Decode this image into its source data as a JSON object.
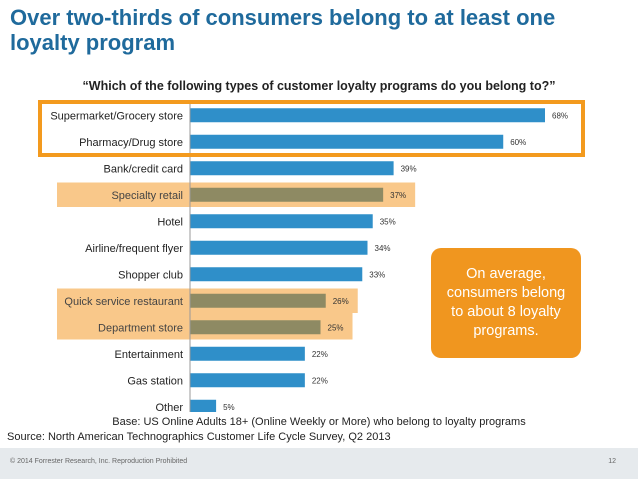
{
  "slide": {
    "title": "Over two-thirds of consumers belong to at least one loyalty program",
    "question": "“Which of the following types of customer loyalty programs do you belong to?”",
    "base_note": "Base: US Online Adults 18+ (Online Weekly or More) who belong to loyalty programs",
    "source": "Source: North American Technographics Customer Life Cycle Survey, Q2 2013",
    "copyright": "© 2014 Forrester Research, Inc. Reproduction Prohibited",
    "page_number": "12",
    "callout": "On average, consumers belong to about 8 loyalty programs."
  },
  "chart_data": {
    "type": "bar",
    "orientation": "horizontal",
    "categories": [
      "Supermarket/Grocery store",
      "Pharmacy/Drug store",
      "Bank/credit card",
      "Specialty retail",
      "Hotel",
      "Airline/frequent flyer",
      "Shopper club",
      "Quick service restaurant",
      "Department store",
      "Entertainment",
      "Gas station",
      "Other"
    ],
    "values": [
      68,
      60,
      39,
      37,
      35,
      34,
      33,
      26,
      25,
      22,
      22,
      5
    ],
    "value_labels": [
      "68%",
      "60%",
      "39%",
      "37%",
      "35%",
      "34%",
      "33%",
      "26%",
      "25%",
      "22%",
      "22%",
      "5%"
    ],
    "xlim": [
      0,
      68
    ],
    "highlights": {
      "outlined": [
        0,
        1
      ],
      "shaded": [
        3,
        7,
        8
      ]
    },
    "colors": {
      "bar": "#2f8fc9",
      "bar_highlight": "#8e8a63",
      "shade": "#f9c88a",
      "outline": "#f39a1e",
      "callout": "#f0961f",
      "title": "#1f6a9c"
    }
  }
}
